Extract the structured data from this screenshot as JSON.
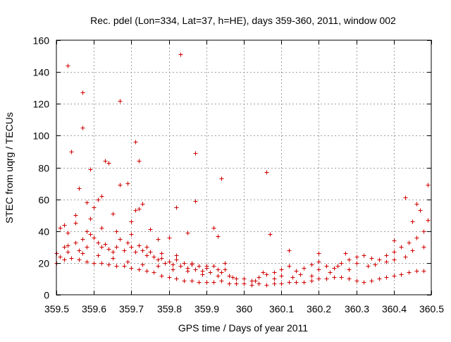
{
  "chart_data": {
    "type": "scatter",
    "title": "Rec. pdel (Lon=334, Lat=37, h=HE), days 359-360, 2011, window 002",
    "xlabel": "GPS time / Days of year 2011",
    "ylabel": "STEC from uqrg / TECUs",
    "xlim": [
      359.5,
      360.5
    ],
    "ylim": [
      0,
      160
    ],
    "x_ticks": [
      359.5,
      359.6,
      359.7,
      359.8,
      359.9,
      360.0,
      360.1,
      360.2,
      360.3,
      360.4,
      360.5
    ],
    "x_tick_labels": [
      "359.5",
      "359.6",
      "359.7",
      "359.8",
      "359.9",
      "360",
      "360.1",
      "360.2",
      "360.3",
      "360.4",
      "360.5"
    ],
    "y_ticks": [
      0,
      20,
      40,
      60,
      80,
      100,
      120,
      140,
      160
    ],
    "y_tick_labels": [
      "0",
      "20",
      "40",
      "60",
      "80",
      "100",
      "120",
      "140",
      "160"
    ],
    "grid": true,
    "legend": "none",
    "marker": "plus",
    "color": "#d00000",
    "series": [
      {
        "points": [
          [
            359.51,
            42
          ],
          [
            359.52,
            44
          ],
          [
            359.53,
            144
          ],
          [
            359.53,
            39
          ],
          [
            359.54,
            90
          ],
          [
            359.55,
            50
          ],
          [
            359.56,
            67
          ],
          [
            359.57,
            127
          ],
          [
            359.57,
            105
          ],
          [
            359.58,
            58
          ],
          [
            359.59,
            79
          ],
          [
            359.59,
            48
          ],
          [
            359.6,
            55
          ],
          [
            359.61,
            60
          ],
          [
            359.62,
            62
          ],
          [
            359.63,
            84
          ],
          [
            359.64,
            83
          ],
          [
            359.65,
            51
          ],
          [
            359.67,
            122
          ],
          [
            359.67,
            69
          ],
          [
            359.69,
            70
          ],
          [
            359.7,
            46
          ],
          [
            359.71,
            96
          ],
          [
            359.71,
            53
          ],
          [
            359.72,
            84
          ],
          [
            359.72,
            54
          ],
          [
            359.73,
            57
          ],
          [
            359.75,
            41
          ],
          [
            359.77,
            35
          ],
          [
            359.8,
            36
          ],
          [
            359.82,
            55
          ],
          [
            359.83,
            151
          ],
          [
            359.85,
            39
          ],
          [
            359.87,
            89
          ],
          [
            359.87,
            59
          ],
          [
            359.92,
            42
          ],
          [
            359.93,
            37
          ],
          [
            359.94,
            73
          ],
          [
            360.06,
            77
          ],
          [
            360.07,
            38
          ],
          [
            360.12,
            28
          ],
          [
            360.2,
            26
          ],
          [
            360.27,
            26
          ],
          [
            360.4,
            34
          ],
          [
            360.43,
            61
          ],
          [
            360.45,
            46
          ],
          [
            360.46,
            57
          ],
          [
            360.47,
            53
          ],
          [
            360.49,
            69
          ],
          [
            360.49,
            47
          ],
          [
            359.5,
            26
          ],
          [
            359.51,
            24
          ],
          [
            359.52,
            30
          ],
          [
            359.53,
            31
          ],
          [
            359.55,
            33
          ],
          [
            359.56,
            28
          ],
          [
            359.57,
            35
          ],
          [
            359.58,
            30
          ],
          [
            359.59,
            38
          ],
          [
            359.6,
            36
          ],
          [
            359.61,
            33
          ],
          [
            359.62,
            30
          ],
          [
            359.63,
            32
          ],
          [
            359.64,
            29
          ],
          [
            359.65,
            27
          ],
          [
            359.66,
            30
          ],
          [
            359.67,
            35
          ],
          [
            359.68,
            28
          ],
          [
            359.69,
            33
          ],
          [
            359.7,
            30
          ],
          [
            359.71,
            27
          ],
          [
            359.72,
            31
          ],
          [
            359.73,
            28
          ],
          [
            359.74,
            25
          ],
          [
            359.75,
            27
          ],
          [
            359.76,
            24
          ],
          [
            359.77,
            22
          ],
          [
            359.78,
            23
          ],
          [
            359.79,
            20
          ],
          [
            359.8,
            21
          ],
          [
            359.81,
            19
          ],
          [
            359.82,
            22
          ],
          [
            359.83,
            18
          ],
          [
            359.84,
            20
          ],
          [
            359.85,
            17
          ],
          [
            359.86,
            19
          ],
          [
            359.87,
            16
          ],
          [
            359.88,
            18
          ],
          [
            359.89,
            15
          ],
          [
            359.9,
            17
          ],
          [
            359.91,
            14
          ],
          [
            359.92,
            18
          ],
          [
            359.93,
            16
          ],
          [
            359.94,
            14
          ],
          [
            359.95,
            20
          ],
          [
            359.96,
            12
          ],
          [
            359.98,
            10
          ],
          [
            360.0,
            10
          ],
          [
            360.02,
            9
          ],
          [
            360.04,
            11
          ],
          [
            360.06,
            13
          ],
          [
            360.08,
            14
          ],
          [
            360.1,
            16
          ],
          [
            360.12,
            18
          ],
          [
            360.14,
            15
          ],
          [
            360.16,
            17
          ],
          [
            360.18,
            19
          ],
          [
            360.2,
            21
          ],
          [
            360.22,
            18
          ],
          [
            360.24,
            17
          ],
          [
            360.26,
            20
          ],
          [
            360.28,
            22
          ],
          [
            360.3,
            24
          ],
          [
            360.32,
            25
          ],
          [
            360.34,
            23
          ],
          [
            360.36,
            22
          ],
          [
            360.38,
            25
          ],
          [
            360.4,
            27
          ],
          [
            360.42,
            30
          ],
          [
            360.44,
            33
          ],
          [
            360.46,
            36
          ],
          [
            360.48,
            40
          ],
          [
            359.5,
            20
          ],
          [
            359.52,
            22
          ],
          [
            359.54,
            23
          ],
          [
            359.56,
            22
          ],
          [
            359.58,
            21
          ],
          [
            359.6,
            20
          ],
          [
            359.62,
            20
          ],
          [
            359.64,
            19
          ],
          [
            359.66,
            18
          ],
          [
            359.68,
            18
          ],
          [
            359.7,
            17
          ],
          [
            359.72,
            16
          ],
          [
            359.74,
            15
          ],
          [
            359.76,
            14
          ],
          [
            359.78,
            12
          ],
          [
            359.8,
            11
          ],
          [
            359.82,
            10
          ],
          [
            359.84,
            9
          ],
          [
            359.86,
            9
          ],
          [
            359.88,
            8
          ],
          [
            359.9,
            8
          ],
          [
            359.92,
            8
          ],
          [
            359.94,
            9
          ],
          [
            359.96,
            7
          ],
          [
            359.98,
            7
          ],
          [
            360.0,
            7
          ],
          [
            360.02,
            6
          ],
          [
            360.04,
            7
          ],
          [
            360.06,
            6
          ],
          [
            360.08,
            7
          ],
          [
            360.1,
            7
          ],
          [
            360.12,
            8
          ],
          [
            360.14,
            8
          ],
          [
            360.16,
            8
          ],
          [
            360.18,
            9
          ],
          [
            360.2,
            10
          ],
          [
            360.22,
            10
          ],
          [
            360.24,
            11
          ],
          [
            360.26,
            11
          ],
          [
            360.28,
            10
          ],
          [
            360.3,
            9
          ],
          [
            360.32,
            8
          ],
          [
            360.34,
            9
          ],
          [
            360.36,
            10
          ],
          [
            360.38,
            11
          ],
          [
            360.4,
            12
          ],
          [
            360.42,
            13
          ],
          [
            360.44,
            14
          ],
          [
            360.46,
            15
          ],
          [
            360.48,
            15
          ],
          [
            359.55,
            45
          ],
          [
            359.58,
            40
          ],
          [
            359.62,
            42
          ],
          [
            359.66,
            40
          ],
          [
            359.7,
            38
          ],
          [
            359.74,
            30
          ],
          [
            359.78,
            26
          ],
          [
            359.82,
            25
          ],
          [
            359.86,
            20
          ],
          [
            359.9,
            18
          ],
          [
            359.95,
            16
          ],
          [
            360.05,
            14
          ],
          [
            360.1,
            12
          ],
          [
            360.15,
            13
          ],
          [
            360.2,
            16
          ],
          [
            360.25,
            18
          ],
          [
            360.3,
            20
          ],
          [
            360.35,
            19
          ],
          [
            360.4,
            22
          ],
          [
            360.45,
            28
          ],
          [
            360.48,
            30
          ],
          [
            360.43,
            24
          ],
          [
            360.38,
            21
          ],
          [
            360.33,
            18
          ],
          [
            360.28,
            16
          ],
          [
            360.23,
            14
          ],
          [
            360.18,
            12
          ],
          [
            360.13,
            11
          ],
          [
            360.08,
            10
          ],
          [
            360.03,
            9
          ],
          [
            359.97,
            11
          ],
          [
            359.93,
            12
          ],
          [
            359.89,
            13
          ],
          [
            359.85,
            15
          ],
          [
            359.81,
            16
          ],
          [
            359.77,
            18
          ],
          [
            359.73,
            19
          ],
          [
            359.69,
            21
          ],
          [
            359.65,
            23
          ],
          [
            359.61,
            25
          ],
          [
            359.57,
            26
          ],
          [
            359.53,
            27
          ]
        ]
      }
    ]
  }
}
